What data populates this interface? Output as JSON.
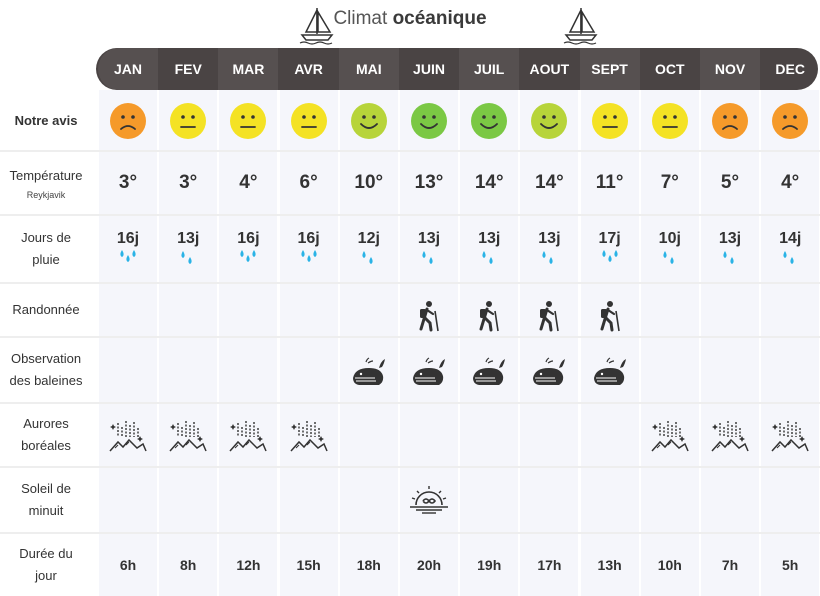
{
  "header": {
    "title_normal": "Climat ",
    "title_bold": "océanique"
  },
  "months": [
    "JAN",
    "FEV",
    "MAR",
    "AVR",
    "MAI",
    "JUIN",
    "JUIL",
    "AOUT",
    "SEPT",
    "OCT",
    "NOV",
    "DEC"
  ],
  "rows": {
    "avis": {
      "label": "Notre avis"
    },
    "temperature": {
      "label": "Température",
      "sublabel": "Reykjavik"
    },
    "pluie": {
      "label_line1": "Jours de",
      "label_line2": "pluie"
    },
    "randonnee": {
      "label": "Randonnée"
    },
    "baleines": {
      "label_line1": "Observation",
      "label_line2": "des baleines"
    },
    "aurores": {
      "label_line1": "Aurores",
      "label_line2": "boréales"
    },
    "soleil": {
      "label_line1": "Soleil de",
      "label_line2": "minuit"
    },
    "duree": {
      "label_line1": "Durée du",
      "label_line2": "jour"
    }
  },
  "avis": [
    "sad",
    "neutral",
    "neutral",
    "neutral",
    "happy-light",
    "happy",
    "happy",
    "happy-light",
    "neutral",
    "neutral",
    "sad",
    "sad"
  ],
  "colors": {
    "sad": "#f59a2a",
    "neutral": "#f4e224",
    "happy-light": "#b7d43a",
    "happy": "#7bc844",
    "rain": "#2ab3e6",
    "band": "#f5f6fb",
    "header": "#4a4444"
  },
  "temperatures": [
    "3°",
    "3°",
    "4°",
    "6°",
    "10°",
    "13°",
    "14°",
    "14°",
    "11°",
    "7°",
    "5°",
    "4°"
  ],
  "rain_days": [
    "16j",
    "13j",
    "16j",
    "16j",
    "12j",
    "13j",
    "13j",
    "13j",
    "17j",
    "10j",
    "13j",
    "14j"
  ],
  "rain_drops": [
    3,
    2,
    3,
    3,
    2,
    2,
    2,
    2,
    3,
    2,
    2,
    2
  ],
  "hiking": [
    false,
    false,
    false,
    false,
    false,
    true,
    true,
    true,
    true,
    false,
    false,
    false
  ],
  "whales": [
    false,
    false,
    false,
    false,
    true,
    true,
    true,
    true,
    true,
    false,
    false,
    false
  ],
  "aurora": [
    true,
    true,
    true,
    true,
    false,
    false,
    false,
    false,
    false,
    true,
    true,
    true
  ],
  "midnight_sun": [
    false,
    false,
    false,
    false,
    false,
    true,
    false,
    false,
    false,
    false,
    false,
    false
  ],
  "day_length": [
    "6h",
    "8h",
    "12h",
    "15h",
    "18h",
    "20h",
    "19h",
    "17h",
    "13h",
    "10h",
    "7h",
    "5h"
  ],
  "icons": {
    "hiking": "hiker-icon",
    "whales": "whale-icon",
    "aurora": "aurora-icon",
    "midnight_sun": "midnight-sun-icon",
    "rain": "raindrop-icon",
    "boat": "sailboat-icon"
  }
}
